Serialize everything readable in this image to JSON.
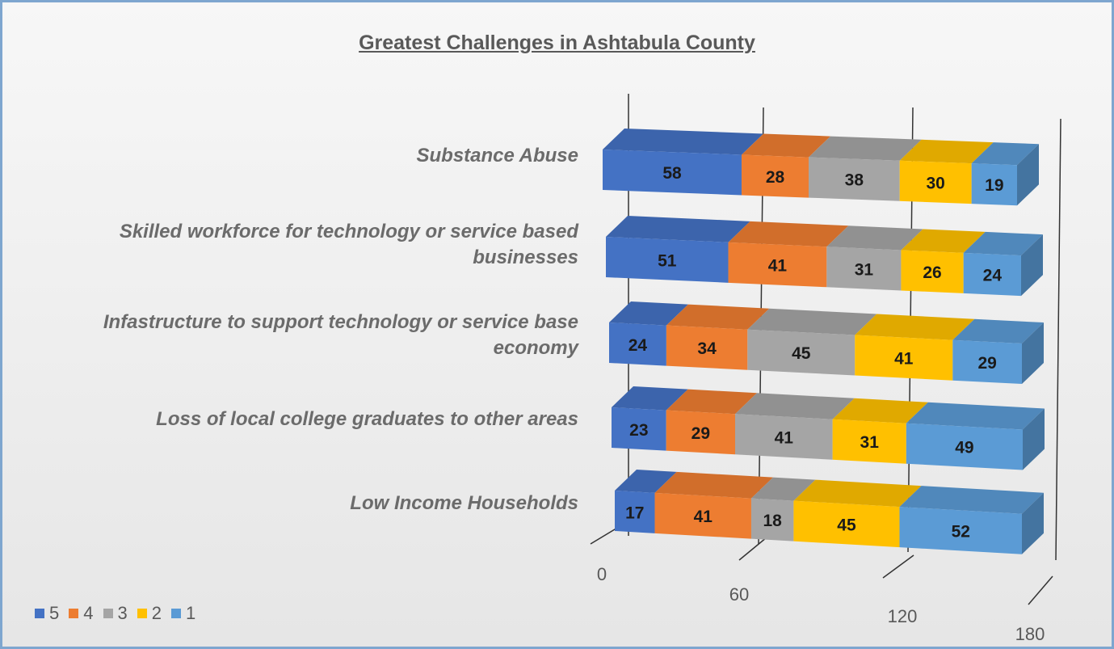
{
  "chart_data": {
    "type": "bar",
    "orientation": "horizontal",
    "stacked": true,
    "three_d": true,
    "title": "Greatest Challenges in Ashtabula County",
    "categories": [
      "Substance Abuse",
      "Skilled workforce for technology or service based businesses",
      "Infastructure to support technology or service base economy",
      "Loss of local college graduates to other areas",
      "Low Income Households"
    ],
    "series": [
      {
        "name": "5",
        "color": "#4472c4",
        "values": [
          58,
          51,
          24,
          23,
          17
        ]
      },
      {
        "name": "4",
        "color": "#ed7d31",
        "values": [
          28,
          41,
          34,
          29,
          41
        ]
      },
      {
        "name": "3",
        "color": "#a5a5a5",
        "values": [
          38,
          31,
          45,
          41,
          18
        ]
      },
      {
        "name": "2",
        "color": "#ffc000",
        "values": [
          30,
          26,
          41,
          31,
          45
        ]
      },
      {
        "name": "1",
        "color": "#5b9bd5",
        "values": [
          19,
          24,
          29,
          49,
          52
        ]
      }
    ],
    "xlim": [
      0,
      180
    ],
    "xticks": [
      "0",
      "60",
      "120",
      "180"
    ],
    "grid": true,
    "legend": "bottom-left"
  }
}
